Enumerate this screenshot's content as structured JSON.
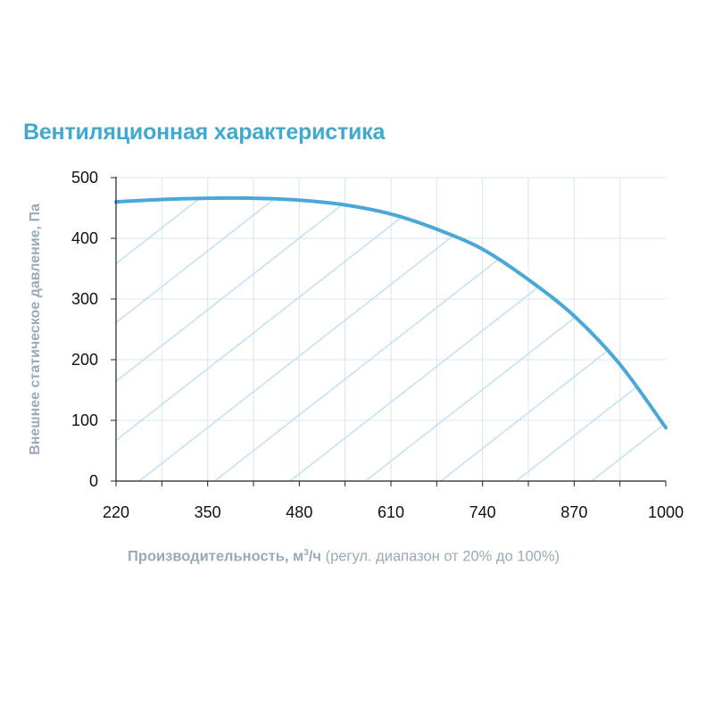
{
  "title": "Вентиляционная характеристика",
  "colors": {
    "title": "#3fa9cf",
    "curve": "#4aa8d8",
    "hatch": "#c6e1f0",
    "grid": "#d6e7f0",
    "axis": "#222222",
    "axis_label": "#9aaab8"
  },
  "chart_data": {
    "type": "area",
    "title": "Вентиляционная характеристика",
    "xlabel": {
      "main": "Производительность, м",
      "sup": "3",
      "unit_tail": "/ч",
      "note": " (регул. диапазон от 20% до 100%)"
    },
    "ylabel": "Внешнее статическое давление, Па",
    "xlim": [
      220,
      1000
    ],
    "ylim": [
      0,
      500
    ],
    "x_ticks": [
      220,
      350,
      480,
      610,
      740,
      870,
      1000
    ],
    "y_ticks": [
      0,
      100,
      200,
      300,
      400,
      500
    ],
    "grid": true,
    "fill": "hatched",
    "series": [
      {
        "x": [
          220,
          285,
          350,
          415,
          480,
          545,
          610,
          675,
          740,
          805,
          870,
          935,
          1000
        ],
        "y": [
          460,
          464,
          466,
          466,
          463,
          455,
          440,
          415,
          382,
          332,
          272,
          192,
          88
        ]
      }
    ]
  }
}
